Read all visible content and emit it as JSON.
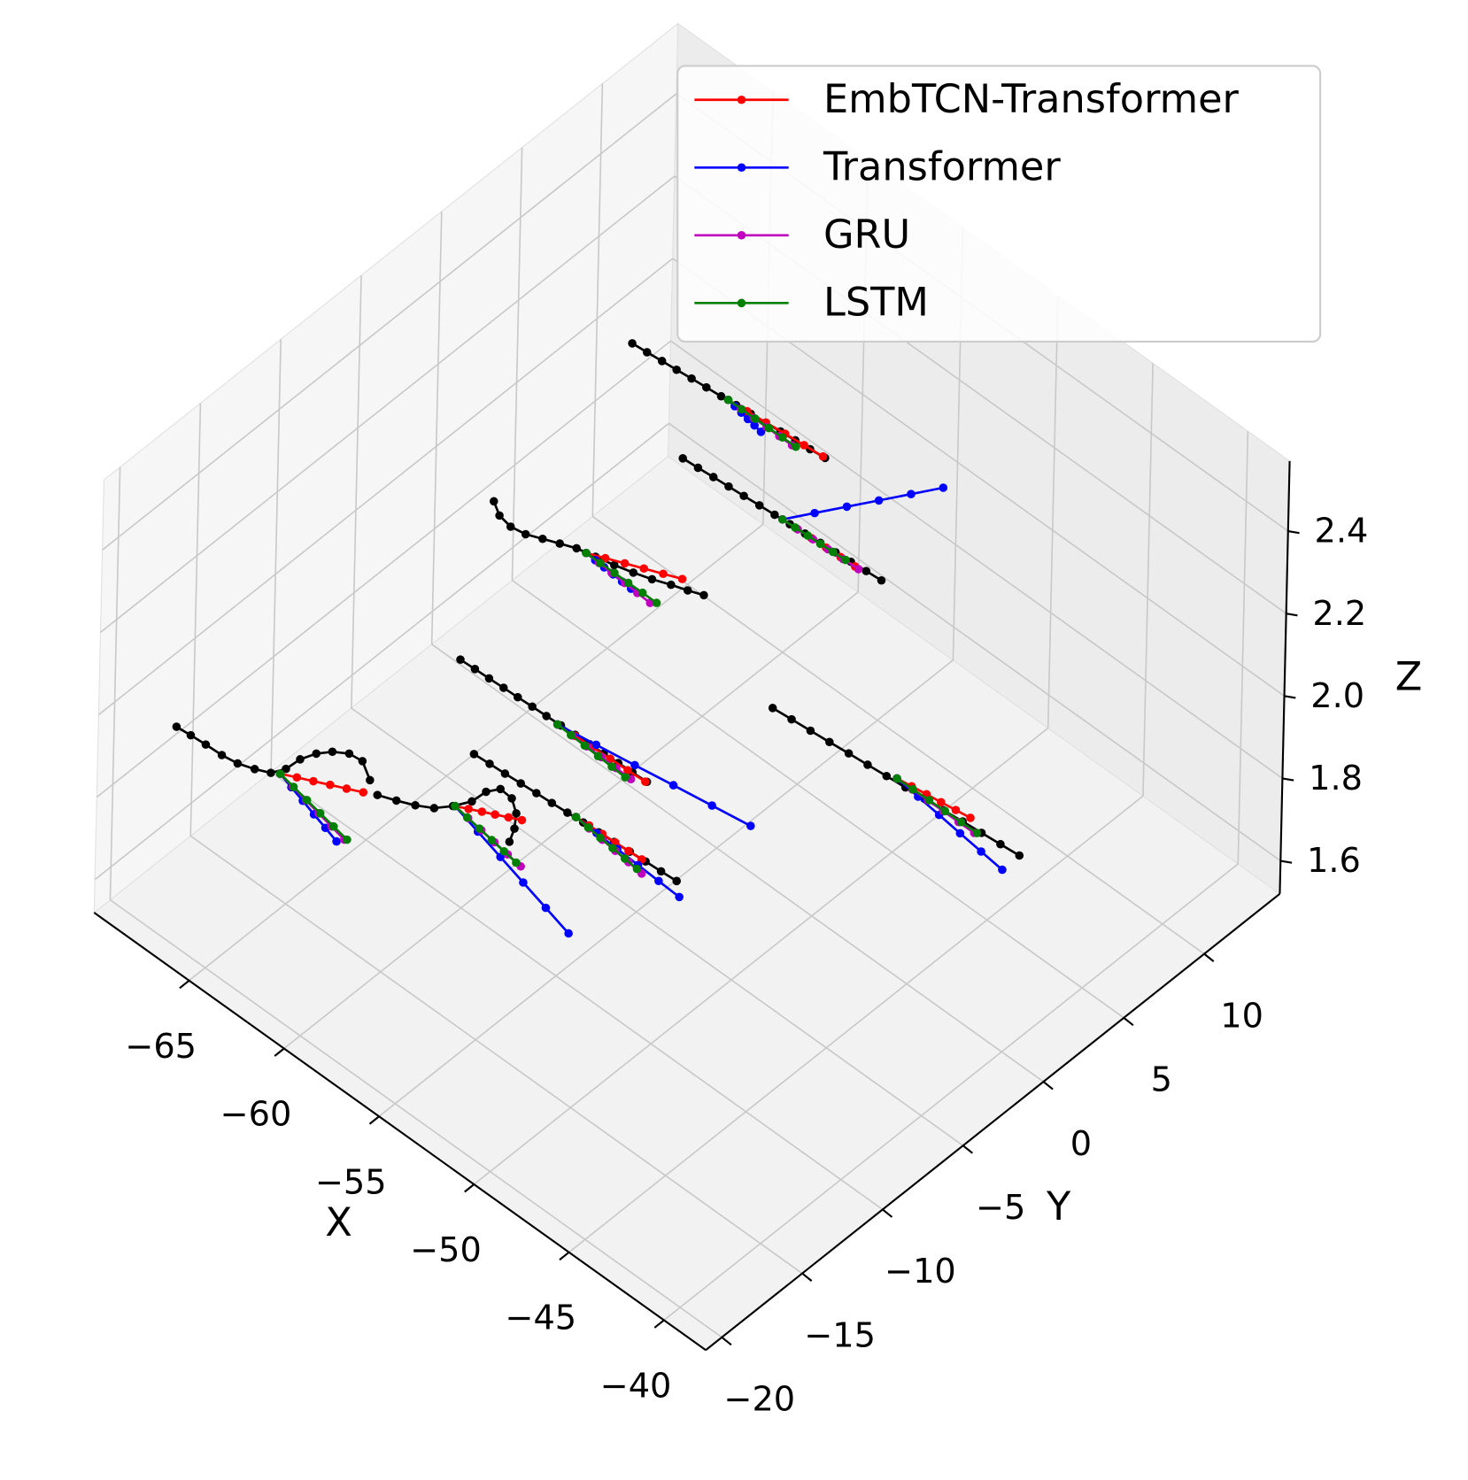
{
  "chart_data": {
    "type": "line3d",
    "xlabel": "X",
    "ylabel": "Y",
    "zlabel": "Z",
    "xlim": [
      -70,
      -37.8
    ],
    "ylim": [
      -21,
      14.7
    ],
    "zlim": [
      1.52,
      2.57
    ],
    "xticks": [
      {
        "value": -65,
        "label": "−65"
      },
      {
        "value": -60,
        "label": "−60"
      },
      {
        "value": -55,
        "label": "−55"
      },
      {
        "value": -50,
        "label": "−50"
      },
      {
        "value": -45,
        "label": "−45"
      },
      {
        "value": -40,
        "label": "−40"
      }
    ],
    "yticks": [
      {
        "value": -20,
        "label": "−20"
      },
      {
        "value": -15,
        "label": "−15"
      },
      {
        "value": -10,
        "label": "−10"
      },
      {
        "value": -5,
        "label": "−5"
      },
      0,
      5,
      10
    ],
    "zticks": [
      1.6,
      1.8,
      {
        "value": 2,
        "label": "2.0"
      },
      2.2,
      2.4
    ],
    "grid": true,
    "legend": "upper right",
    "ground_truth": {
      "color": "#000000",
      "tracks": [
        {
          "x": [
            -63.93,
            -63.21,
            -62.49,
            -61.78,
            -61.06,
            -60.34,
            -59.62,
            -58.9,
            -58.19,
            -57.47,
            -56.75,
            -56.03,
            -55.31,
            -54.59
          ],
          "y": [
            4.84,
            4.91,
            4.99,
            5.06,
            5.14,
            5.21,
            5.28,
            5.36,
            5.43,
            5.5,
            5.58,
            5.65,
            5.72,
            5.8
          ],
          "z": 2.3
        },
        {
          "x": [
            -59.93,
            -59.18,
            -58.43,
            -57.68,
            -56.93,
            -56.17,
            -55.42,
            -54.67,
            -53.92,
            -53.17,
            -52.42,
            -51.67,
            -50.92,
            -50.17
          ],
          "y": [
            3.32,
            3.38,
            3.45,
            3.51,
            3.57,
            3.64,
            3.7,
            3.76,
            3.82,
            3.89,
            3.95,
            4.01,
            4.08,
            4.14
          ],
          "z": 2.2
        },
        {
          "x": [
            -65.08,
            -64.43,
            -63.73,
            -63.05,
            -62.42,
            -61.78,
            -61.15,
            -60.33,
            -59.52,
            -58.73,
            -57.98,
            -57.26,
            -56.6,
            -55.99
          ],
          "y": [
            -2.29,
            -2.71,
            -2.84,
            -2.71,
            -2.4,
            -2.09,
            -1.79,
            -1.58,
            -1.37,
            -1.12,
            -0.84,
            -0.51,
            -0.25,
            0.03
          ],
          "z": 2.1
        },
        {
          "x": [
            -64.72,
            -63.99,
            -63.27,
            -62.54,
            -61.82,
            -61.09,
            -60.37,
            -59.64,
            -58.92,
            -58.19,
            -57.47,
            -56.74,
            -56.02,
            -55.29
          ],
          "y": [
            -4.62,
            -4.58,
            -4.55,
            -4.51,
            -4.48,
            -4.44,
            -4.41,
            -4.37,
            -4.34,
            -4.3,
            -4.27,
            -4.23,
            -4.2,
            -4.16
          ],
          "z": 1.8
        },
        {
          "x": [
            -61.05,
            -60.28,
            -59.51,
            -58.73,
            -57.96,
            -57.19,
            -56.42,
            -55.64,
            -54.87,
            -54.1,
            -53.33,
            -52.55,
            -51.78,
            -51.01
          ],
          "y": [
            -8.11,
            -8.05,
            -8.0,
            -7.94,
            -7.88,
            -7.83,
            -7.77,
            -7.71,
            -7.66,
            -7.6,
            -7.54,
            -7.48,
            -7.43,
            -7.37
          ],
          "z": 1.8
        },
        {
          "x": [
            -69.54,
            -68.85,
            -68.11,
            -67.3,
            -66.57,
            -65.9,
            -65.32,
            -65.04,
            -64.98,
            -64.73,
            -64.35,
            -63.82,
            -63.19,
            -62.32
          ],
          "y": [
            -16.61,
            -16.54,
            -16.48,
            -16.44,
            -16.32,
            -16.05,
            -15.73,
            -15.12,
            -14.31,
            -13.6,
            -13.05,
            -12.63,
            -12.55,
            -13.11
          ],
          "z": 1.85
        },
        {
          "x": [
            -62.3,
            -61.58,
            -60.89,
            -60.27,
            -59.82,
            -59.46,
            -59.4,
            -59.1,
            -58.46,
            -57.81,
            -57.33,
            -57.01
          ],
          "y": [
            -12.64,
            -12.31,
            -11.95,
            -11.51,
            -10.87,
            -10.12,
            -9.31,
            -8.77,
            -8.82,
            -9.31,
            -9.99,
            -10.68
          ],
          "z": 1.8
        },
        {
          "x": [
            -52.97,
            -52.05,
            -51.13,
            -50.21,
            -49.28,
            -48.36,
            -47.44,
            -46.52,
            -45.6,
            -44.68,
            -43.75,
            -42.83,
            -41.91,
            -40.99
          ],
          "y": [
            0.86,
            0.95,
            1.04,
            1.13,
            1.23,
            1.32,
            1.41,
            1.5,
            1.59,
            1.68,
            1.78,
            1.87,
            1.96,
            2.05
          ],
          "z": 1.9
        }
      ]
    },
    "series": [
      {
        "name": "EmbTCN-Transformer",
        "color": "#ff0000",
        "tracks": [
          {
            "x": [
              -59.3,
              -58.38,
              -57.46,
              -56.54,
              -55.62,
              -54.7
            ],
            "y": [
              5.34,
              5.43,
              5.52,
              5.62,
              5.71,
              5.8
            ],
            "z": 2.3
          },
          {
            "x": [
              -55.04,
              -54.31,
              -53.58,
              -52.85,
              -52.12,
              -51.39
            ],
            "y": [
              3.74,
              3.78,
              3.82,
              3.86,
              3.9,
              3.94
            ],
            "z": 2.2
          },
          {
            "x": [
              -60.72,
              -60.01,
              -59.29,
              -58.58,
              -57.86,
              -57.15
            ],
            "y": [
              -1.7,
              -1.35,
              -0.99,
              -0.64,
              -0.29,
              0.06
            ],
            "z": 2.1
          },
          {
            "x": [
              -59.77,
              -58.88,
              -58.0,
              -57.11,
              -56.23,
              -55.34
            ],
            "y": [
              -4.43,
              -4.38,
              -4.34,
              -4.29,
              -4.25,
              -4.2
            ],
            "z": 1.8
          },
          {
            "x": [
              -56.03,
              -55.37,
              -54.71,
              -54.05,
              -53.39,
              -52.73
            ],
            "y": [
              -7.7,
              -7.66,
              -7.62,
              -7.59,
              -7.55,
              -7.51
            ],
            "z": 1.8
          },
          {
            "x": [
              -65.03,
              -64.44,
              -63.85,
              -63.26,
              -62.67,
              -62.08
            ],
            "y": [
              -15.49,
              -15.15,
              -14.82,
              -14.48,
              -14.15,
              -13.81
            ],
            "z": 1.85
          },
          {
            "x": [
              -59.76,
              -59.29,
              -58.82,
              -58.36,
              -57.89,
              -57.42
            ],
            "y": [
              -10.81,
              -10.53,
              -10.25,
              -9.98,
              -9.7,
              -9.42
            ],
            "z": 1.8
          },
          {
            "x": [
              -47.07,
              -46.39,
              -45.7,
              -45.02,
              -44.34,
              -43.66
            ],
            "y": [
              1.62,
              1.73,
              1.84,
              1.94,
              2.05,
              2.16
            ],
            "z": 1.9
          }
        ]
      },
      {
        "name": "Transformer",
        "color": "#0000ff",
        "tracks": [
          {
            "x": [
              -59.3,
              -58.9,
              -58.49,
              -58.09,
              -57.68,
              -57.28
            ],
            "y": [
              5.34,
              5.27,
              5.2,
              5.13,
              5.06,
              4.99
            ],
            "z": 2.3
          },
          {
            "x": [
              -55.04,
              -54.37,
              -53.7,
              -53.03,
              -52.36,
              -51.69
            ],
            "y": [
              3.74,
              4.95,
              6.16,
              7.36,
              8.57,
              9.78
            ],
            "z": 2.2
          },
          {
            "x": [
              -60.72,
              -60.22,
              -59.72,
              -59.23,
              -58.73,
              -58.23
            ],
            "y": [
              -1.7,
              -1.73,
              -1.76,
              -1.79,
              -1.82,
              -1.85
            ],
            "z": 2.1
          },
          {
            "x": [
              -59.77,
              -57.99,
              -56.21,
              -54.44,
              -52.66,
              -50.88
            ],
            "y": [
              -4.43,
              -4.13,
              -3.83,
              -3.52,
              -3.22,
              -2.92
            ],
            "z": 1.8
          },
          {
            "x": [
              -56.03,
              -54.9,
              -53.77,
              -52.64,
              -51.51,
              -50.38
            ],
            "y": [
              -7.7,
              -7.75,
              -7.8,
              -7.85,
              -7.9,
              -7.95
            ],
            "z": 1.8
          },
          {
            "x": [
              -65.03,
              -64.25,
              -63.46,
              -62.68,
              -61.89,
              -61.11
            ],
            "y": [
              -15.49,
              -15.72,
              -15.94,
              -16.17,
              -16.39,
              -16.62
            ],
            "z": 1.85
          },
          {
            "x": [
              -59.76,
              -58.24,
              -56.73,
              -55.21,
              -53.7,
              -52.18
            ],
            "y": [
              -10.81,
              -11.19,
              -11.57,
              -11.95,
              -12.33,
              -12.71
            ],
            "z": 1.8
          },
          {
            "x": [
              -47.07,
              -45.85,
              -44.63,
              -43.41,
              -42.19,
              -40.97
            ],
            "y": [
              1.62,
              1.49,
              1.36,
              1.22,
              1.09,
              0.96
            ],
            "z": 1.9
          }
        ]
      },
      {
        "name": "GRU",
        "color": "#bf00bf",
        "tracks": [
          {
            "x": [
              -59.3,
              -58.63,
              -57.96,
              -57.29,
              -56.62,
              -55.95
            ],
            "y": [
              5.34,
              5.34,
              5.34,
              5.35,
              5.35,
              5.35
            ],
            "z": 2.3
          },
          {
            "x": [
              -55.04,
              -54.27,
              -53.5,
              -52.74,
              -51.97,
              -51.2
            ],
            "y": [
              3.74,
              3.78,
              3.82,
              3.85,
              3.89,
              3.93
            ],
            "z": 2.2
          },
          {
            "x": [
              -60.72,
              -60.02,
              -59.32,
              -58.61,
              -57.91,
              -57.21
            ],
            "y": [
              -1.7,
              -1.73,
              -1.77,
              -1.8,
              -1.84,
              -1.87
            ],
            "z": 2.1
          },
          {
            "x": [
              -59.77,
              -58.98,
              -58.19,
              -57.41,
              -56.62,
              -55.83
            ],
            "y": [
              -4.43,
              -4.45,
              -4.47,
              -4.48,
              -4.5,
              -4.52
            ],
            "z": 1.8
          },
          {
            "x": [
              -56.03,
              -55.27,
              -54.51,
              -53.76,
              -53.0,
              -52.24
            ],
            "y": [
              -7.7,
              -7.78,
              -7.86,
              -7.93,
              -8.01,
              -8.09
            ],
            "z": 1.8
          },
          {
            "x": [
              -65.03,
              -64.22,
              -63.4,
              -62.59,
              -61.77,
              -60.96
            ],
            "y": [
              -15.49,
              -15.66,
              -15.82,
              -15.99,
              -16.15,
              -16.32
            ],
            "z": 1.85
          },
          {
            "x": [
              -59.76,
              -58.98,
              -58.19,
              -57.41,
              -56.62,
              -55.84
            ],
            "y": [
              -10.81,
              -10.92,
              -11.03,
              -11.14,
              -11.25,
              -11.36
            ],
            "z": 1.8
          },
          {
            "x": [
              -47.07,
              -46.26,
              -45.45,
              -44.65,
              -43.84,
              -43.03
            ],
            "y": [
              1.62,
              1.62,
              1.63,
              1.64,
              1.64,
              1.65
            ],
            "z": 1.9
          }
        ]
      },
      {
        "name": "LSTM",
        "color": "#008000",
        "tracks": [
          {
            "x": [
              -59.3,
              -58.6,
              -57.9,
              -57.19,
              -56.49,
              -55.79
            ],
            "y": [
              5.34,
              5.35,
              5.36,
              5.38,
              5.39,
              5.4
            ],
            "z": 2.3
          },
          {
            "x": [
              -55.04,
              -54.41,
              -53.78,
              -53.14,
              -52.51,
              -51.88
            ],
            "y": [
              3.74,
              3.78,
              3.82,
              3.85,
              3.89,
              3.93
            ],
            "z": 2.2
          },
          {
            "x": [
              -60.72,
              -59.98,
              -59.24,
              -58.51,
              -57.77,
              -57.03
            ],
            "y": [
              -1.7,
              -1.7,
              -1.69,
              -1.69,
              -1.68,
              -1.68
            ],
            "z": 2.1
          },
          {
            "x": [
              -59.77,
              -59.03,
              -58.28,
              -57.54,
              -56.79,
              -56.05
            ],
            "y": [
              -4.43,
              -4.47,
              -4.5,
              -4.54,
              -4.57,
              -4.61
            ],
            "z": 1.8
          },
          {
            "x": [
              -56.03,
              -55.33,
              -54.63,
              -53.93,
              -53.23,
              -52.53
            ],
            "y": [
              -7.7,
              -7.77,
              -7.84,
              -7.9,
              -7.97,
              -8.04
            ],
            "z": 1.8
          },
          {
            "x": [
              -65.03,
              -64.2,
              -63.37,
              -62.54,
              -61.71,
              -60.88
            ],
            "y": [
              -15.49,
              -15.64,
              -15.79,
              -15.94,
              -16.09,
              -16.24
            ],
            "z": 1.85
          },
          {
            "x": [
              -59.76,
              -59.03,
              -58.3,
              -57.56,
              -56.83,
              -56.1
            ],
            "y": [
              -10.81,
              -10.92,
              -11.02,
              -11.13,
              -11.23,
              -11.34
            ],
            "z": 1.8
          },
          {
            "x": [
              -47.07,
              -46.25,
              -45.42,
              -44.6,
              -43.77,
              -42.95
            ],
            "y": [
              1.62,
              1.64,
              1.67,
              1.69,
              1.71,
              1.73
            ],
            "z": 1.9
          }
        ]
      }
    ]
  }
}
